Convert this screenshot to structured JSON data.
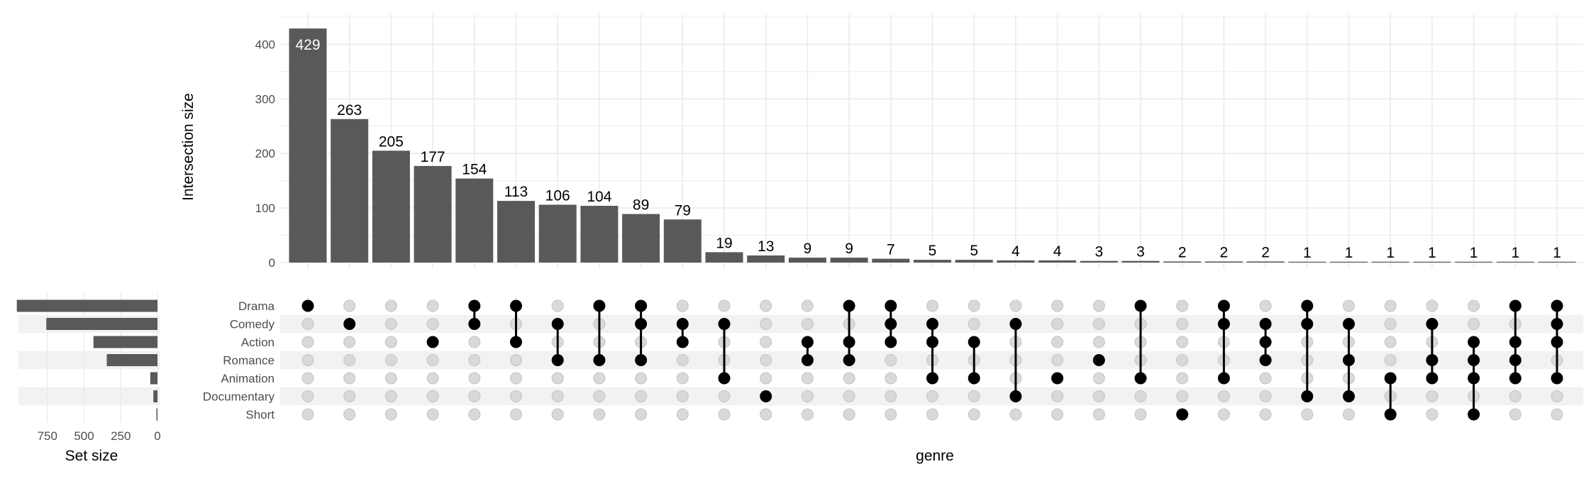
{
  "chart_data": {
    "type": "upset",
    "ylabel": "Intersection size",
    "xlabel": "genre",
    "set_size_label": "Set size",
    "y_ticks": [
      0,
      100,
      200,
      300,
      400
    ],
    "ylim": [
      0,
      450
    ],
    "set_size_ticks": [
      750,
      500,
      250,
      0
    ],
    "set_size_lim": [
      0,
      1000
    ],
    "sets": [
      {
        "name": "Drama",
        "size": 958
      },
      {
        "name": "Comedy",
        "size": 757
      },
      {
        "name": "Action",
        "size": 436
      },
      {
        "name": "Romance",
        "size": 345
      },
      {
        "name": "Animation",
        "size": 49
      },
      {
        "name": "Documentary",
        "size": 28
      },
      {
        "name": "Short",
        "size": 7
      }
    ],
    "intersections": [
      {
        "size": 429,
        "label": "429",
        "members": [
          "Drama"
        ]
      },
      {
        "size": 263,
        "label": "263",
        "members": [
          "Comedy"
        ]
      },
      {
        "size": 205,
        "label": "205",
        "members": []
      },
      {
        "size": 177,
        "label": "177",
        "members": [
          "Action"
        ]
      },
      {
        "size": 154,
        "label": "154",
        "members": [
          "Drama",
          "Comedy"
        ]
      },
      {
        "size": 113,
        "label": "113",
        "members": [
          "Drama",
          "Action"
        ]
      },
      {
        "size": 106,
        "label": "106",
        "members": [
          "Comedy",
          "Romance"
        ]
      },
      {
        "size": 104,
        "label": "104",
        "members": [
          "Drama",
          "Romance"
        ]
      },
      {
        "size": 89,
        "label": "89",
        "members": [
          "Drama",
          "Comedy",
          "Romance"
        ]
      },
      {
        "size": 79,
        "label": "79",
        "members": [
          "Comedy",
          "Action"
        ]
      },
      {
        "size": 19,
        "label": "19",
        "members": [
          "Comedy",
          "Animation"
        ]
      },
      {
        "size": 13,
        "label": "13",
        "members": [
          "Documentary"
        ]
      },
      {
        "size": 9,
        "label": "9",
        "members": [
          "Action",
          "Romance"
        ]
      },
      {
        "size": 9,
        "label": "9",
        "members": [
          "Drama",
          "Action",
          "Romance"
        ]
      },
      {
        "size": 7,
        "label": "7",
        "members": [
          "Drama",
          "Comedy",
          "Action"
        ]
      },
      {
        "size": 5,
        "label": "5",
        "members": [
          "Comedy",
          "Action",
          "Animation"
        ]
      },
      {
        "size": 5,
        "label": "5",
        "members": [
          "Action",
          "Animation"
        ]
      },
      {
        "size": 4,
        "label": "4",
        "members": [
          "Comedy",
          "Documentary"
        ]
      },
      {
        "size": 4,
        "label": "4",
        "members": [
          "Animation"
        ]
      },
      {
        "size": 3,
        "label": "3",
        "members": [
          "Romance"
        ]
      },
      {
        "size": 3,
        "label": "3",
        "members": [
          "Drama",
          "Animation"
        ]
      },
      {
        "size": 2,
        "label": "2",
        "members": [
          "Short"
        ]
      },
      {
        "size": 2,
        "label": "2",
        "members": [
          "Drama",
          "Comedy",
          "Animation"
        ]
      },
      {
        "size": 2,
        "label": "2",
        "members": [
          "Comedy",
          "Action",
          "Romance"
        ]
      },
      {
        "size": 1,
        "label": "1",
        "members": [
          "Drama",
          "Comedy",
          "Documentary"
        ]
      },
      {
        "size": 1,
        "label": "1",
        "members": [
          "Comedy",
          "Romance",
          "Documentary"
        ]
      },
      {
        "size": 1,
        "label": "1",
        "members": [
          "Animation",
          "Short"
        ]
      },
      {
        "size": 1,
        "label": "1",
        "members": [
          "Comedy",
          "Romance",
          "Animation"
        ]
      },
      {
        "size": 1,
        "label": "1",
        "members": [
          "Action",
          "Romance",
          "Animation",
          "Short"
        ]
      },
      {
        "size": 1,
        "label": "1",
        "members": [
          "Drama",
          "Action",
          "Romance",
          "Animation"
        ]
      },
      {
        "size": 1,
        "label": "1",
        "members": [
          "Drama",
          "Comedy",
          "Action",
          "Animation"
        ]
      }
    ],
    "colors": {
      "bar": "#595959",
      "dot_on": "#000000",
      "dot_off": "#d9d9d9",
      "dot_off_stroke": "#c4c4c4",
      "grid": "#ebebeb",
      "stripe": "#f2f2f2",
      "label_inside": "#ffffff",
      "label_outside": "#000000"
    }
  }
}
